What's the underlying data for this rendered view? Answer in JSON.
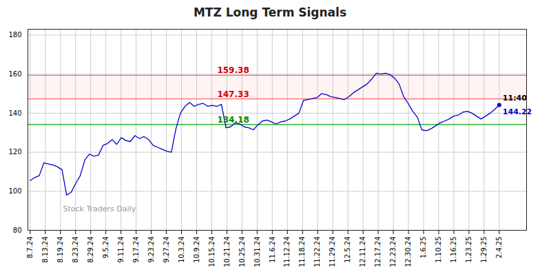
{
  "chart_data": {
    "type": "line",
    "title": "MTZ Long Term Signals",
    "color": "#0000cc",
    "marker": "last",
    "x": [
      0,
      1,
      2,
      3,
      4,
      5,
      6,
      7,
      8,
      9,
      10,
      11,
      12,
      13,
      14,
      15,
      16,
      17,
      18,
      19,
      20,
      21,
      22,
      23,
      24,
      25,
      26,
      27,
      28,
      29,
      30,
      31,
      32,
      33,
      34,
      35,
      36,
      37,
      38,
      39,
      40,
      41,
      42,
      43,
      44,
      45,
      46,
      47,
      48,
      49,
      50,
      51,
      52,
      53,
      54,
      55,
      56,
      57,
      58,
      59,
      60,
      61,
      62,
      63,
      64,
      65,
      66,
      67,
      68,
      69,
      70,
      71,
      72,
      73,
      74,
      75,
      76,
      77,
      78,
      79,
      80,
      81,
      82,
      83,
      84,
      85,
      86,
      87,
      88,
      89,
      90,
      91,
      92,
      93,
      94,
      95,
      96,
      97,
      98,
      99,
      100,
      101,
      102,
      103
    ],
    "values": [
      105.5,
      107.0,
      108.0,
      114.5,
      114.0,
      113.5,
      112.5,
      111.0,
      98.0,
      99.5,
      104.0,
      108.0,
      116.0,
      119.0,
      118.0,
      118.5,
      123.5,
      124.5,
      126.5,
      124.0,
      127.5,
      126.0,
      125.5,
      128.5,
      127.0,
      128.0,
      126.5,
      123.5,
      122.5,
      121.5,
      120.5,
      120.0,
      132.0,
      140.0,
      143.5,
      145.5,
      143.5,
      144.5,
      145.0,
      143.5,
      144.0,
      143.5,
      144.5,
      132.5,
      133.0,
      135.0,
      134.5,
      133.0,
      132.5,
      131.5,
      134.0,
      136.0,
      136.5,
      135.5,
      134.5,
      135.5,
      136.0,
      137.0,
      138.5,
      140.0,
      146.5,
      147.0,
      147.5,
      148.0,
      150.0,
      149.5,
      148.5,
      148.0,
      147.5,
      147.0,
      148.5,
      150.5,
      152.0,
      153.5,
      155.0,
      157.5,
      160.5,
      160.0,
      160.5,
      159.8,
      158.0,
      155.0,
      148.5,
      145.0,
      141.0,
      138.0,
      131.5,
      131.0,
      132.0,
      133.5,
      135.0,
      136.0,
      137.0,
      138.5,
      139.0,
      140.5,
      141.0,
      140.0,
      138.5,
      137.0,
      138.5,
      140.0,
      142.0,
      144.22
    ],
    "xlim": [
      -0.5,
      109
    ],
    "xticks": [
      {
        "value": 0,
        "label": "8.7.24"
      },
      {
        "value": 3.322581,
        "label": "8.13.24"
      },
      {
        "value": 6.645161,
        "label": "8.19.24"
      },
      {
        "value": 9.967742,
        "label": "8.23.24"
      },
      {
        "value": 13.290323,
        "label": "8.29.24"
      },
      {
        "value": 16.612903,
        "label": "9.5.24"
      },
      {
        "value": 19.935484,
        "label": "9.11.24"
      },
      {
        "value": 23.258065,
        "label": "9.17.24"
      },
      {
        "value": 26.580645,
        "label": "9.23.24"
      },
      {
        "value": 29.903226,
        "label": "9.27.24"
      },
      {
        "value": 33.225806,
        "label": "10.3.24"
      },
      {
        "value": 36.548387,
        "label": "10.9.24"
      },
      {
        "value": 39.870968,
        "label": "10.15.24"
      },
      {
        "value": 43.193548,
        "label": "10.21.24"
      },
      {
        "value": 46.516129,
        "label": "10.25.24"
      },
      {
        "value": 49.83871,
        "label": "10.31.24"
      },
      {
        "value": 53.16129,
        "label": "11.6.24"
      },
      {
        "value": 56.483871,
        "label": "11.12.24"
      },
      {
        "value": 59.806452,
        "label": "11.18.24"
      },
      {
        "value": 63.129032,
        "label": "11.22.24"
      },
      {
        "value": 66.451613,
        "label": "11.29.24"
      },
      {
        "value": 69.774194,
        "label": "12.5.24"
      },
      {
        "value": 73.096774,
        "label": "12.11.24"
      },
      {
        "value": 76.419355,
        "label": "12.17.24"
      },
      {
        "value": 79.741935,
        "label": "12.23.24"
      },
      {
        "value": 83.064516,
        "label": "12.30.24"
      },
      {
        "value": 86.387097,
        "label": "1.6.25"
      },
      {
        "value": 89.709677,
        "label": "1.10.25"
      },
      {
        "value": 93.032258,
        "label": "1.16.25"
      },
      {
        "value": 96.354839,
        "label": "1.23.25"
      },
      {
        "value": 99.677419,
        "label": "1.29.25"
      },
      {
        "value": 103,
        "label": "2.4.25"
      }
    ],
    "ylim": [
      80,
      183
    ],
    "yticks": [
      80,
      100,
      120,
      140,
      160,
      180
    ],
    "grid": true,
    "reference_lines": [
      {
        "value": 159.38,
        "label": "159.38",
        "color": "#ff6666",
        "label_color": "#cc0000"
      },
      {
        "value": 147.33,
        "label": "147.33",
        "color": "#ff6666",
        "label_color": "#cc0000"
      },
      {
        "value": 134.18,
        "label": "134.18",
        "color": "#00aa00",
        "label_color": "#008800"
      }
    ],
    "band": {
      "from": 147.33,
      "to": 159.38,
      "color": "#ffaaaa"
    },
    "annotations": [
      {
        "text": "11:40",
        "x": 103,
        "y": 144.22,
        "color": "#000000",
        "position": "above"
      },
      {
        "text": "144.22",
        "x": 103,
        "y": 144.22,
        "color": "#0000cc",
        "position": "below"
      }
    ],
    "watermark": {
      "text": "Stock Traders Daily",
      "color": "#999999"
    }
  }
}
